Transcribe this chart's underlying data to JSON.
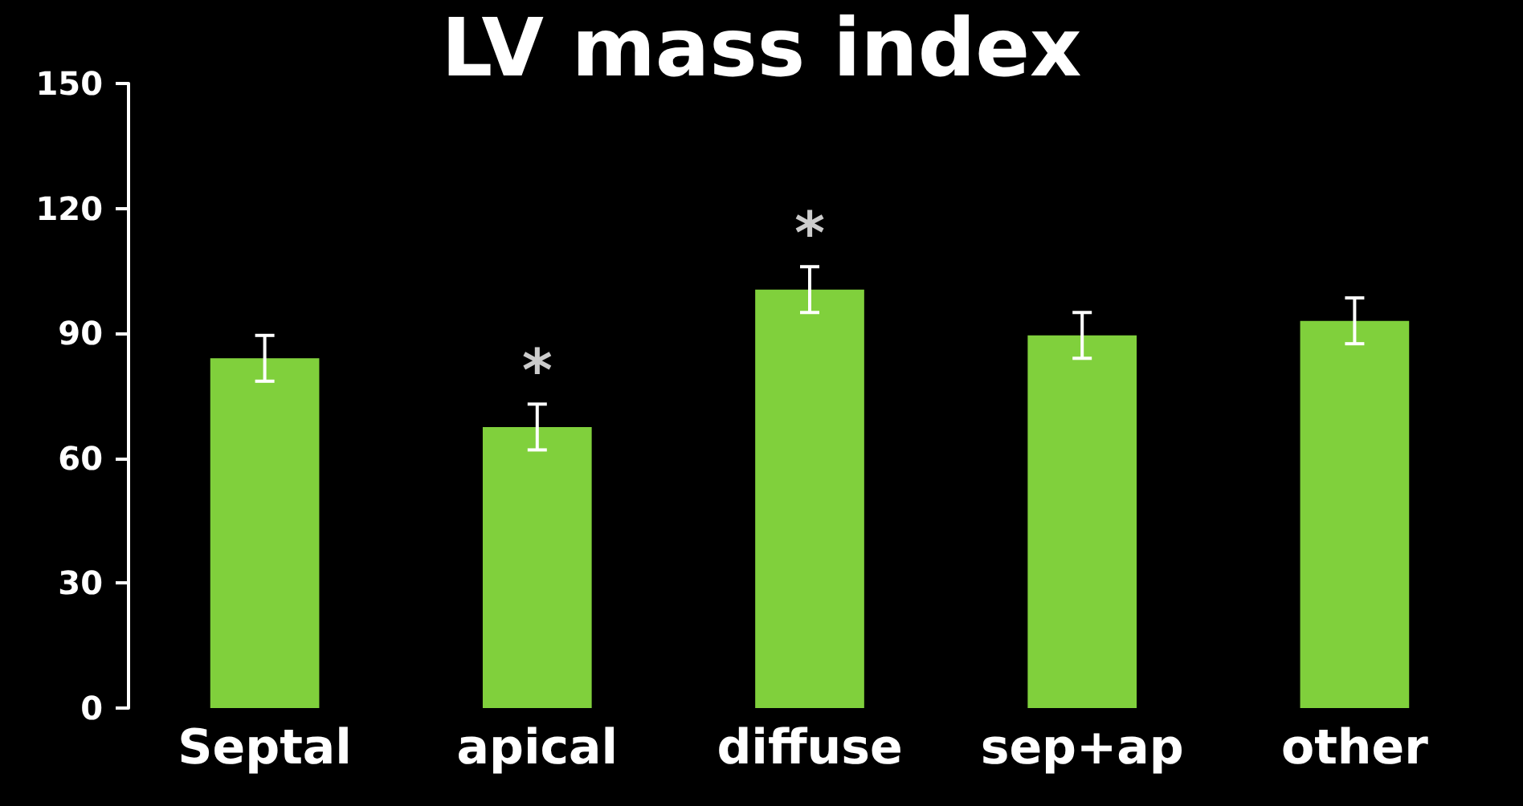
{
  "chart_data": {
    "type": "bar",
    "title": "LV mass index",
    "categories": [
      "Septal",
      "apical",
      "diffuse",
      "sep+ap",
      "other"
    ],
    "values": [
      84,
      67.5,
      100.5,
      89.5,
      93
    ],
    "errors": [
      5.5,
      5.5,
      5.5,
      5.5,
      5.5
    ],
    "color": "#80d03c",
    "ylim": [
      0,
      150
    ],
    "yticks": [
      0,
      30,
      60,
      90,
      120,
      150
    ],
    "grid": false,
    "annotations": [
      {
        "text": "*",
        "x": "apical",
        "y": 73
      },
      {
        "text": "*",
        "x": "diffuse",
        "y": 106
      }
    ]
  }
}
